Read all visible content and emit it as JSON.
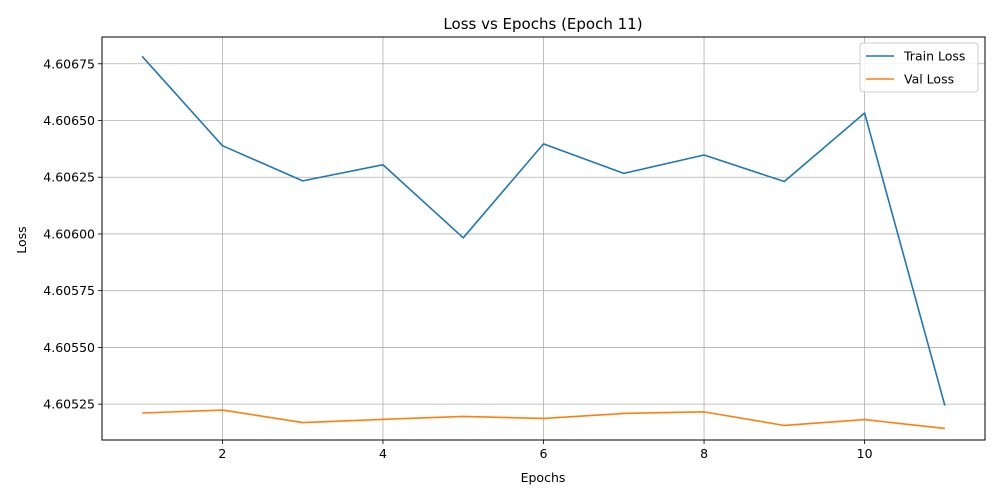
{
  "chart_data": {
    "type": "line",
    "title": "Loss vs Epochs (Epoch 11)",
    "xlabel": "Epochs",
    "ylabel": "Loss",
    "x": [
      1,
      2,
      3,
      4,
      5,
      6,
      7,
      8,
      9,
      10,
      11
    ],
    "xlim": [
      0.5,
      11.5
    ],
    "ylim": [
      4.605092,
      4.606868
    ],
    "xticks": [
      2,
      4,
      6,
      8,
      10
    ],
    "yticks": [
      4.60525,
      4.6055,
      4.60575,
      4.606,
      4.60625,
      4.6065,
      4.60675
    ],
    "xtick_labels": [
      "2",
      "4",
      "6",
      "8",
      "10"
    ],
    "ytick_labels": [
      "4.60525",
      "4.60550",
      "4.60575",
      "4.60600",
      "4.60625",
      "4.60650",
      "4.60675"
    ],
    "grid": true,
    "legend_position": "top-right",
    "series": [
      {
        "name": "Train Loss",
        "color": "#1f77b4",
        "values": [
          4.606783,
          4.606389,
          4.606234,
          4.606305,
          4.605983,
          4.606397,
          4.606267,
          4.606348,
          4.606231,
          4.606533,
          4.605244
        ]
      },
      {
        "name": "Val Loss",
        "color": "#ff7f0e",
        "values": [
          4.605211,
          4.605224,
          4.605169,
          4.605183,
          4.605196,
          4.605187,
          4.605209,
          4.605216,
          4.605156,
          4.605182,
          4.605143
        ]
      }
    ]
  }
}
